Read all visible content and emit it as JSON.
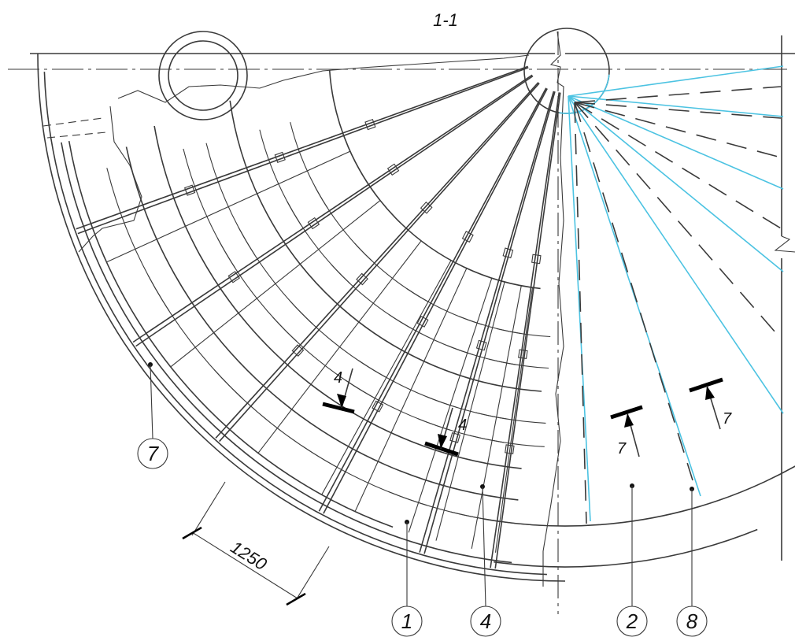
{
  "section_title": "1-1",
  "dimension": "1250",
  "cut_marks": [
    "4",
    "4",
    "7",
    "7"
  ],
  "callouts": [
    "7",
    "1",
    "4",
    "2",
    "8"
  ],
  "colors": {
    "line": "#3a3a3a",
    "highlight": "#4cc3e2"
  }
}
